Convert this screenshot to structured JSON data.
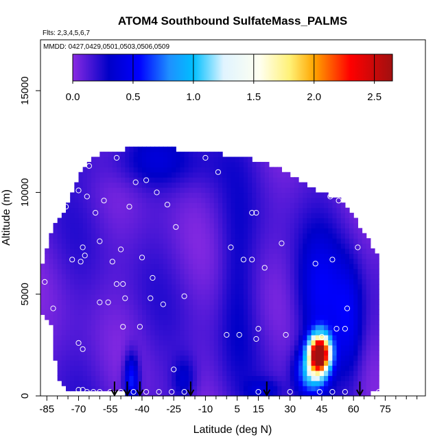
{
  "chart_data": {
    "type": "heatmap",
    "title": "ATOM4 Southbound SulfateMass_PALMS",
    "flights_text": "Flts: 2,3,4,5,6,7",
    "dates_text": "MMDD: 0427,0429,0501,0503,0506,0509",
    "xlabel": "Latitude (deg N)",
    "ylabel": "Altitude (m)",
    "xlim": [
      -88,
      94
    ],
    "ylim": [
      0,
      17500
    ],
    "x_ticks": [
      -85,
      -70,
      -55,
      -40,
      -25,
      -10,
      5,
      15,
      30,
      45,
      60,
      75
    ],
    "x_minor_ticks": [
      -80,
      -75,
      -65,
      -60,
      -50,
      -45,
      -35,
      -30,
      -20,
      -15,
      -5,
      0,
      10,
      20,
      25,
      35,
      40,
      50,
      55,
      65,
      70,
      80,
      85,
      90
    ],
    "y_ticks": [
      0,
      5000,
      10000,
      15000
    ],
    "colorbar": {
      "range": [
        0,
        2.65
      ],
      "ticks": [
        "0.0",
        "0.5",
        "1.0",
        "1.5",
        "2.0",
        "2.5"
      ],
      "tick_values": [
        0,
        0.5,
        1.0,
        1.5,
        2.0,
        2.5
      ],
      "dividers": [
        0.5,
        1.0,
        1.5,
        2.0,
        2.5
      ],
      "stops": [
        {
          "v": 0.0,
          "c": "#8a2be2"
        },
        {
          "v": 0.3,
          "c": "#0000c8"
        },
        {
          "v": 0.55,
          "c": "#0000ff"
        },
        {
          "v": 0.8,
          "c": "#1e90ff"
        },
        {
          "v": 1.0,
          "c": "#00bfff"
        },
        {
          "v": 1.25,
          "c": "#e0f4ff"
        },
        {
          "v": 1.55,
          "c": "#fffff0"
        },
        {
          "v": 1.8,
          "c": "#fff176"
        },
        {
          "v": 2.0,
          "c": "#ffa500"
        },
        {
          "v": 2.3,
          "c": "#ff0000"
        },
        {
          "v": 2.65,
          "c": "#a01010"
        }
      ]
    },
    "colors": {
      "background": "#8020e0",
      "point": "#ffffff",
      "axis": "#000000"
    },
    "envelope": [
      [
        -87,
        4000,
        6500
      ],
      [
        -85,
        3800,
        7200
      ],
      [
        -83,
        3500,
        8000
      ],
      [
        -80,
        1000,
        8600
      ],
      [
        -77,
        600,
        9000
      ],
      [
        -75,
        300,
        9600
      ],
      [
        -72,
        300,
        10300
      ],
      [
        -70,
        200,
        10800
      ],
      [
        -67,
        200,
        11200
      ],
      [
        -64,
        200,
        11600
      ],
      [
        -60,
        150,
        11900
      ],
      [
        -56,
        150,
        12000
      ],
      [
        -50,
        150,
        12100
      ],
      [
        -45,
        100,
        12200
      ],
      [
        -40,
        100,
        12250
      ],
      [
        -34,
        100,
        12250
      ],
      [
        -28,
        100,
        12200
      ],
      [
        -22,
        100,
        12100
      ],
      [
        -16,
        100,
        12050
      ],
      [
        -10,
        100,
        11950
      ],
      [
        -4,
        100,
        11900
      ],
      [
        2,
        100,
        11800
      ],
      [
        8,
        100,
        11700
      ],
      [
        14,
        100,
        11600
      ],
      [
        20,
        100,
        11400
      ],
      [
        25,
        100,
        11200
      ],
      [
        30,
        100,
        10900
      ],
      [
        35,
        100,
        10600
      ],
      [
        40,
        100,
        10300
      ],
      [
        45,
        100,
        10000
      ],
      [
        50,
        100,
        9800
      ],
      [
        55,
        100,
        9600
      ],
      [
        60,
        100,
        8800
      ],
      [
        64,
        100,
        8200
      ],
      [
        67,
        100,
        7700
      ],
      [
        70,
        300,
        7200
      ],
      [
        72,
        300,
        6800
      ]
    ],
    "blobs": [
      {
        "x": 44,
        "y": 2100,
        "sx": 3.5,
        "sy": 650,
        "v": 2.7
      },
      {
        "x": 40,
        "y": 1200,
        "sx": 5,
        "sy": 800,
        "v": 0.8
      },
      {
        "x": 44,
        "y": 4800,
        "sx": 8,
        "sy": 2200,
        "v": 0.35
      },
      {
        "x": 58,
        "y": 3500,
        "sx": 5,
        "sy": 2000,
        "v": 0.35
      },
      {
        "x": -45,
        "y": 800,
        "sx": 2.5,
        "sy": 900,
        "v": 0.55
      },
      {
        "x": -35,
        "y": 11500,
        "sx": 20,
        "sy": 900,
        "v": 0.2
      },
      {
        "x": 18,
        "y": 300,
        "sx": 6,
        "sy": 400,
        "v": 0.2
      },
      {
        "x": -20,
        "y": 800,
        "sx": 4,
        "sy": 800,
        "v": 0.25
      },
      {
        "x": 5,
        "y": 5500,
        "sx": 6,
        "sy": 3000,
        "v": 0.15
      }
    ],
    "hot_zone": {
      "x0": 33,
      "x1": 55,
      "y0": 800,
      "y1": 3000
    },
    "points": [
      [
        -86,
        5600
      ],
      [
        -82,
        4300
      ],
      [
        -76,
        9300
      ],
      [
        -73,
        6700
      ],
      [
        -70,
        10100
      ],
      [
        -69,
        6600
      ],
      [
        -68,
        7300
      ],
      [
        -67,
        6900
      ],
      [
        -70,
        2600
      ],
      [
        -68,
        2300
      ],
      [
        -66,
        9800
      ],
      [
        -65,
        11300
      ],
      [
        -62,
        9000
      ],
      [
        -60,
        7600
      ],
      [
        -60,
        4600
      ],
      [
        -58,
        9600
      ],
      [
        -56,
        4600
      ],
      [
        -54,
        6600
      ],
      [
        -52,
        5500
      ],
      [
        -50,
        7200
      ],
      [
        -49,
        5500
      ],
      [
        -49,
        3400
      ],
      [
        -48,
        4800
      ],
      [
        -46,
        9300
      ],
      [
        -43,
        10500
      ],
      [
        -41,
        3400
      ],
      [
        -40,
        6800
      ],
      [
        -38,
        10600
      ],
      [
        -36,
        4800
      ],
      [
        -35,
        5800
      ],
      [
        -33,
        10000
      ],
      [
        -30,
        4500
      ],
      [
        -28,
        9400
      ],
      [
        -25,
        1300
      ],
      [
        -24,
        8300
      ],
      [
        -20,
        4900
      ],
      [
        -52,
        11700
      ],
      [
        -70,
        300
      ],
      [
        -68,
        300
      ],
      [
        -66,
        200
      ],
      [
        -63,
        200
      ],
      [
        -60,
        200
      ],
      [
        -55,
        200
      ],
      [
        -50,
        200
      ],
      [
        -44,
        200
      ],
      [
        -38,
        200
      ],
      [
        -32,
        200
      ],
      [
        -26,
        200
      ],
      [
        -20,
        200
      ],
      [
        -10,
        11700
      ],
      [
        -4,
        11000
      ],
      [
        0,
        3000
      ],
      [
        2,
        7300
      ],
      [
        6,
        3000
      ],
      [
        8,
        6700
      ],
      [
        12,
        6700
      ],
      [
        12,
        9000
      ],
      [
        14,
        9000
      ],
      [
        14,
        2800
      ],
      [
        15,
        3300
      ],
      [
        18,
        6300
      ],
      [
        20,
        11700
      ],
      [
        26,
        7500
      ],
      [
        28,
        3000
      ],
      [
        42,
        6500
      ],
      [
        45,
        2900
      ],
      [
        49,
        9800
      ],
      [
        50,
        6700
      ],
      [
        52,
        3300
      ],
      [
        53,
        9600
      ],
      [
        56,
        3300
      ],
      [
        57,
        4300
      ],
      [
        62,
        7300
      ],
      [
        15,
        200
      ],
      [
        30,
        200
      ],
      [
        44,
        200
      ],
      [
        50,
        200
      ],
      [
        56,
        200
      ],
      [
        72,
        200
      ]
    ],
    "arrows_x": [
      -53,
      -47,
      -41,
      -17,
      19,
      63
    ]
  }
}
